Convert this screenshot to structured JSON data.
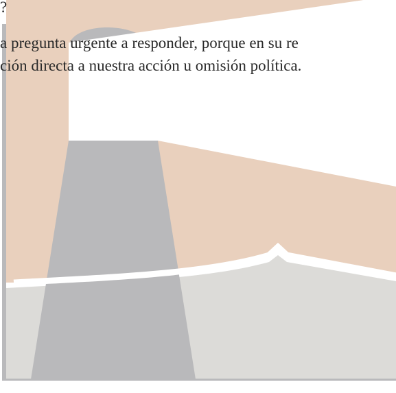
{
  "document": {
    "heading_fragment": "?",
    "paragraph_lines": [
      "a pregunta urgente a responder, porque en su re",
      "ción directa a nuestra acción u omisión política."
    ]
  }
}
